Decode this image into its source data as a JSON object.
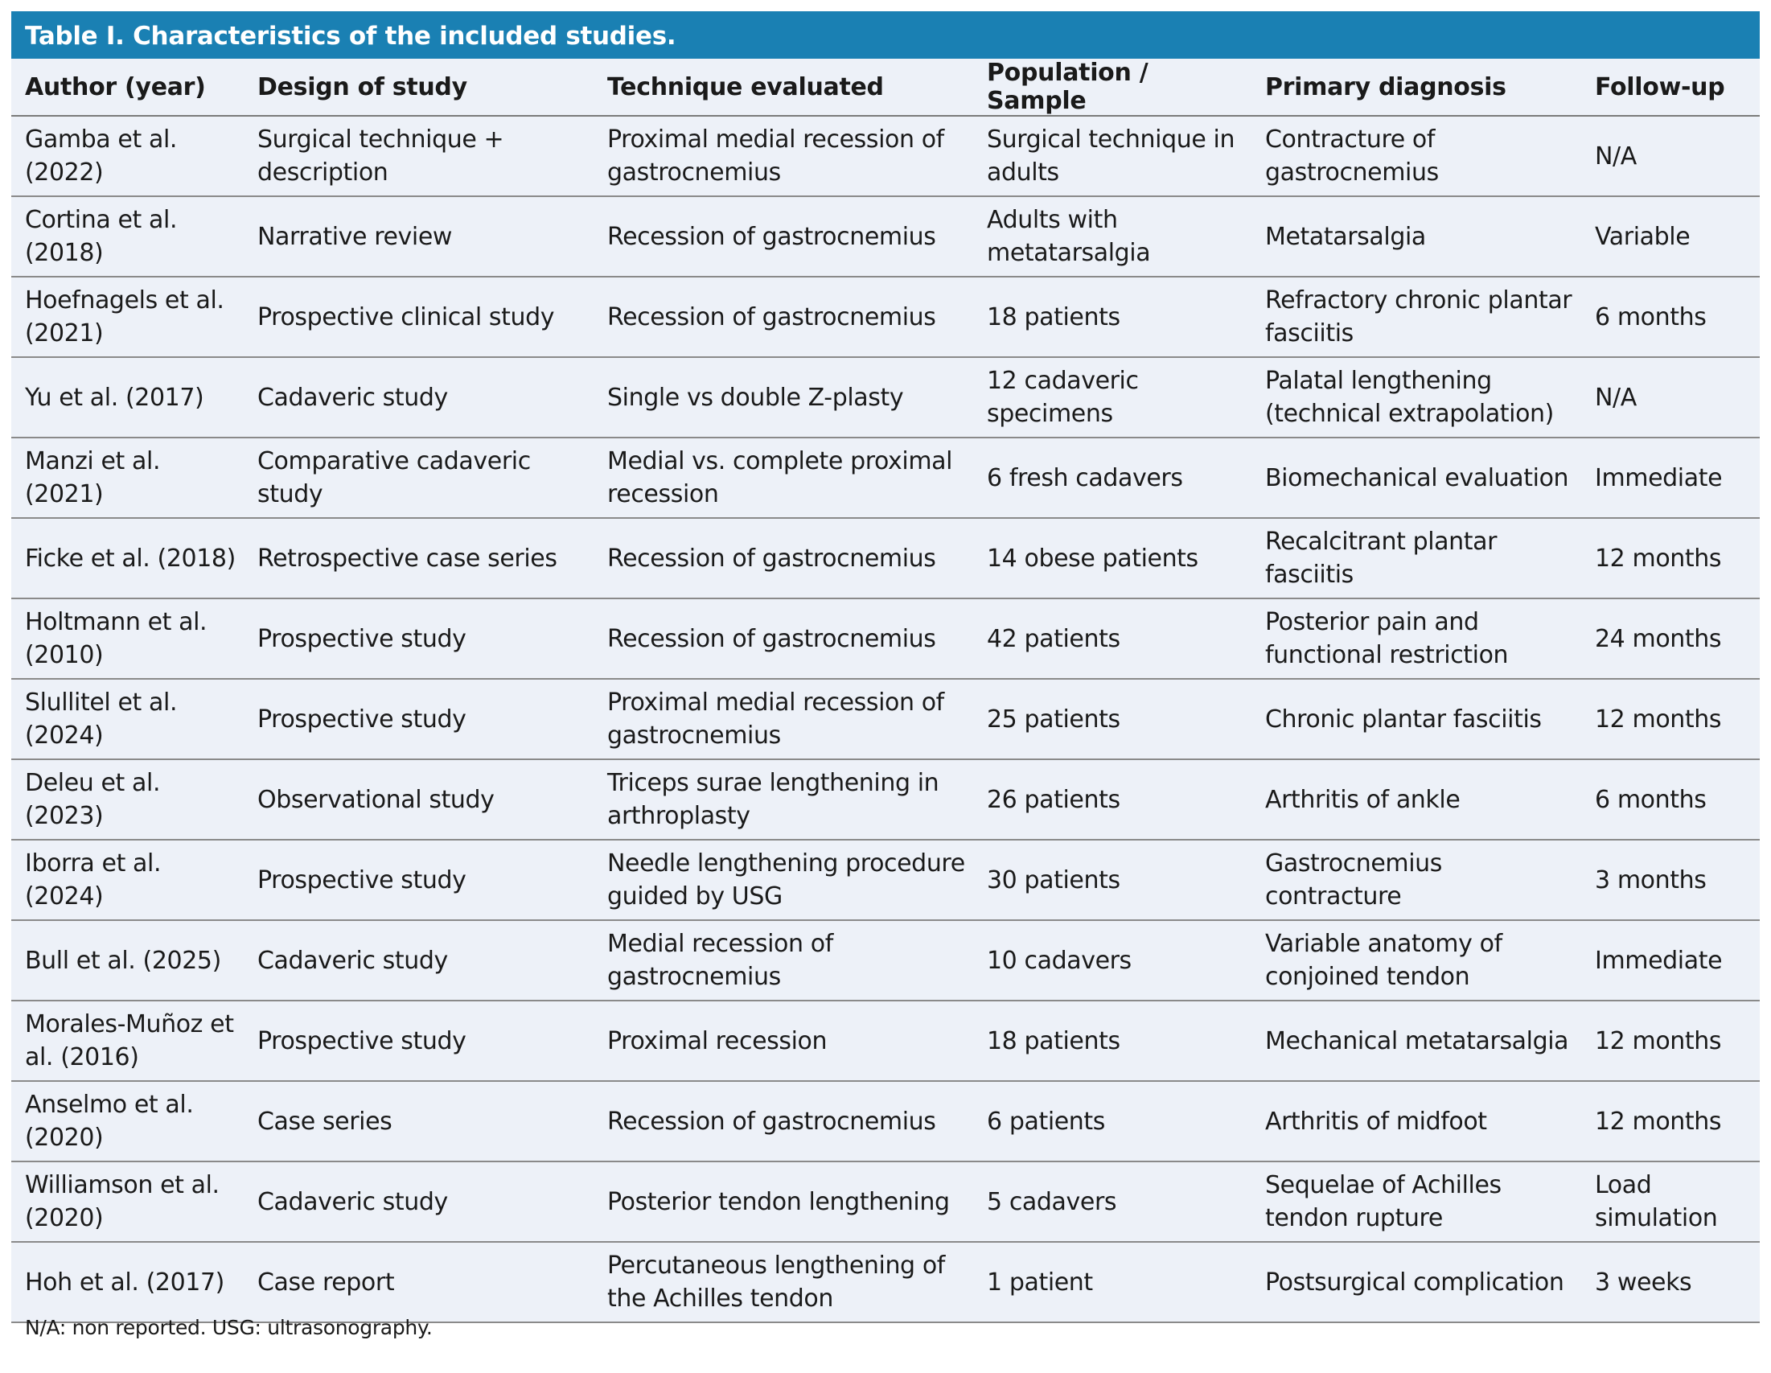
{
  "title": "Table I. Characteristics of the included studies.",
  "table": {
    "header": [
      "Author (year)",
      "Design of study",
      "Technique evaluated",
      "Population / Sample",
      "Primary diagnosis",
      "Follow-up"
    ],
    "rows": [
      [
        "Gamba et al. (2022)",
        "Surgical technique + description",
        "Proximal medial recession of gastrocnemius",
        "Surgical technique in adults",
        "Contracture of gastrocnemius",
        "N/A"
      ],
      [
        "Cortina et al. (2018)",
        "Narrative review",
        "Recession of gastrocnemius",
        "Adults with metatarsalgia",
        "Metatarsalgia",
        "Variable"
      ],
      [
        "Hoefnagels et al. (2021)",
        "Prospective clinical study",
        "Recession of gastrocnemius",
        "18 patients",
        "Refractory chronic plantar fasciitis",
        "6 months"
      ],
      [
        "Yu et al. (2017)",
        "Cadaveric study",
        "Single vs double Z-plasty",
        "12 cadaveric specimens",
        "Palatal lengthening (technical extrapolation)",
        "N/A"
      ],
      [
        "Manzi et al. (2021)",
        "Comparative cadaveric study",
        "Medial vs. complete proximal recession",
        "6 fresh cadavers",
        "Biomechanical evaluation",
        "Immediate"
      ],
      [
        "Ficke et al. (2018)",
        "Retrospective case series",
        "Recession of gastrocnemius",
        "14 obese patients",
        "Recalcitrant plantar fasciitis",
        "12 months"
      ],
      [
        "Holtmann et al. (2010)",
        "Prospective study",
        "Recession of gastrocnemius",
        "42 patients",
        "Posterior pain and functional restriction",
        "24 months"
      ],
      [
        "Slullitel et al. (2024)",
        "Prospective study",
        "Proximal medial recession of gastrocnemius",
        "25 patients",
        "Chronic plantar fasciitis",
        "12 months"
      ],
      [
        "Deleu et al. (2023)",
        "Observational study",
        "Triceps surae lengthening in arthroplasty",
        "26 patients",
        "Arthritis of ankle",
        "6 months"
      ],
      [
        "Iborra et al. (2024)",
        "Prospective study",
        "Needle lengthening procedure guided by USG",
        "30 patients",
        "Gastrocnemius contracture",
        "3 months"
      ],
      [
        "Bull et al. (2025)",
        "Cadaveric study",
        "Medial recession of gastrocnemius",
        "10 cadavers",
        "Variable anatomy of conjoined tendon",
        "Immediate"
      ],
      [
        "Morales-Muñoz et al. (2016)",
        "Prospective study",
        "Proximal recession",
        "18 patients",
        "Mechanical metatarsalgia",
        "12 months"
      ],
      [
        "Anselmo et al. (2020)",
        "Case series",
        "Recession of gastrocnemius",
        "6 patients",
        "Arthritis of midfoot",
        "12 months"
      ],
      [
        "Williamson et al. (2020)",
        "Cadaveric study",
        "Posterior tendon lengthening",
        "5 cadavers",
        "Sequelae of Achilles tendon rupture",
        "Load simulation"
      ],
      [
        "Hoh et al. (2017)",
        "Case report",
        "Percutaneous lengthening of the Achilles tendon",
        "1 patient",
        "Postsurgical complication",
        "3 weeks"
      ]
    ]
  },
  "footnote": "N/A: non reported. USG: ultrasonography."
}
